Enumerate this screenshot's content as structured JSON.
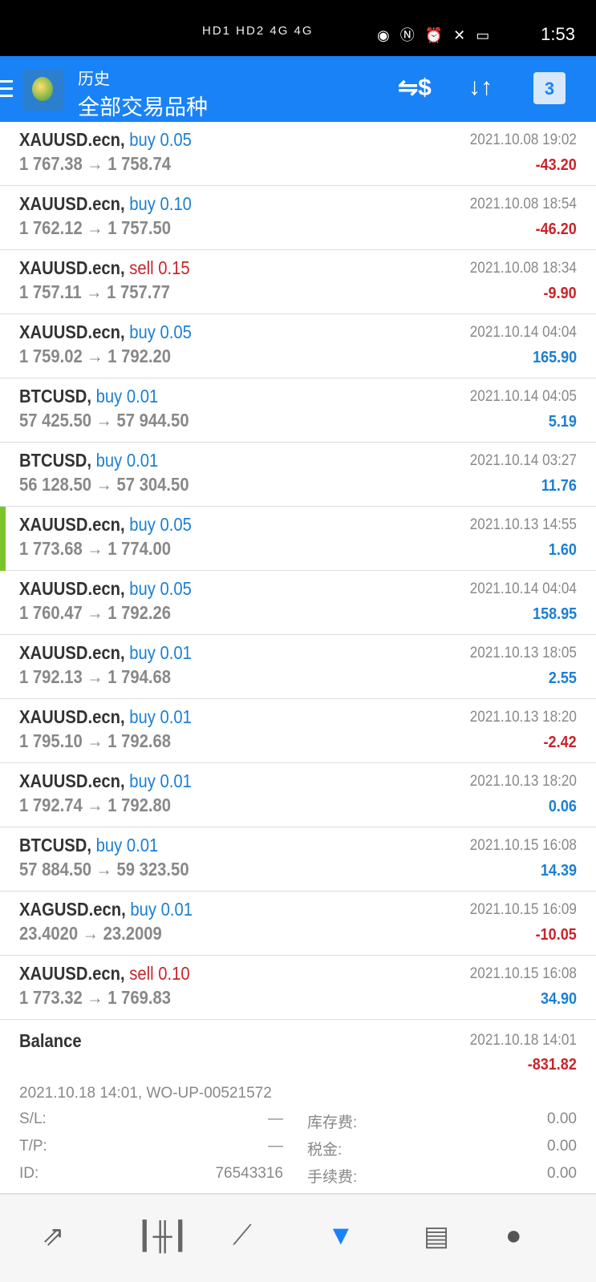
{
  "status_bar": {
    "left_icons": "HD1 HD2 4G 4G",
    "time": "1:53",
    "battery": "46"
  },
  "header": {
    "subtitle": "历史",
    "title": "全部交易品种",
    "calendar_day": "3"
  },
  "trades": [
    {
      "symbol": "XAUUSD.ecn,",
      "side": "buy",
      "volume": "0.05",
      "prices": "1 767.38 → 1 758.74",
      "date": "2021.10.08 19:02",
      "profit": "-43.20"
    },
    {
      "symbol": "XAUUSD.ecn,",
      "side": "buy",
      "volume": "0.10",
      "prices": "1 762.12 → 1 757.50",
      "date": "2021.10.08 18:54",
      "profit": "-46.20"
    },
    {
      "symbol": "XAUUSD.ecn,",
      "side": "sell",
      "volume": "0.15",
      "prices": "1 757.11 → 1 757.77",
      "date": "2021.10.08 18:34",
      "profit": "-9.90"
    },
    {
      "symbol": "XAUUSD.ecn,",
      "side": "buy",
      "volume": "0.05",
      "prices": "1 759.02 → 1 792.20",
      "date": "2021.10.14 04:04",
      "profit": "165.90"
    },
    {
      "symbol": "BTCUSD,",
      "side": "buy",
      "volume": "0.01",
      "prices": "57 425.50 → 57 944.50",
      "date": "2021.10.14 04:05",
      "profit": "5.19"
    },
    {
      "symbol": "BTCUSD,",
      "side": "buy",
      "volume": "0.01",
      "prices": "56 128.50 → 57 304.50",
      "date": "2021.10.14 03:27",
      "profit": "11.76"
    },
    {
      "symbol": "XAUUSD.ecn,",
      "side": "buy",
      "volume": "0.05",
      "prices": "1 773.68 → 1 774.00",
      "date": "2021.10.13 14:55",
      "profit": "1.60",
      "selected": true
    },
    {
      "symbol": "XAUUSD.ecn,",
      "side": "buy",
      "volume": "0.05",
      "prices": "1 760.47 → 1 792.26",
      "date": "2021.10.14 04:04",
      "profit": "158.95"
    },
    {
      "symbol": "XAUUSD.ecn,",
      "side": "buy",
      "volume": "0.01",
      "prices": "1 792.13 → 1 794.68",
      "date": "2021.10.13 18:05",
      "profit": "2.55"
    },
    {
      "symbol": "XAUUSD.ecn,",
      "side": "buy",
      "volume": "0.01",
      "prices": "1 795.10 → 1 792.68",
      "date": "2021.10.13 18:20",
      "profit": "-2.42"
    },
    {
      "symbol": "XAUUSD.ecn,",
      "side": "buy",
      "volume": "0.01",
      "prices": "1 792.74 → 1 792.80",
      "date": "2021.10.13 18:20",
      "profit": "0.06"
    },
    {
      "symbol": "BTCUSD,",
      "side": "buy",
      "volume": "0.01",
      "prices": "57 884.50 → 59 323.50",
      "date": "2021.10.15 16:08",
      "profit": "14.39"
    },
    {
      "symbol": "XAGUSD.ecn,",
      "side": "buy",
      "volume": "0.01",
      "prices": "23.4020 → 23.2009",
      "date": "2021.10.15 16:09",
      "profit": "-10.05"
    },
    {
      "symbol": "XAUUSD.ecn,",
      "side": "sell",
      "volume": "0.10",
      "prices": "1 773.32 → 1 769.83",
      "date": "2021.10.15 16:08",
      "profit": "34.90"
    }
  ],
  "balance": {
    "label": "Balance",
    "date": "2021.10.18 14:01",
    "amount": "-831.82",
    "comment": "2021.10.18 14:01, WO-UP-00521572",
    "sl_label": "S/L:",
    "sl": "—",
    "tp_label": "T/P:",
    "tp": "—",
    "id_label": "ID:",
    "id": "76543316",
    "swap_label": "库存费:",
    "swap": "0.00",
    "tax_label": "税金:",
    "tax": "0.00",
    "fee_label": "手续费:",
    "fee": "0.00"
  },
  "nav": [
    "quotes-icon",
    "chart-icon",
    "trade-icon",
    "history-icon",
    "news-icon",
    "chat-icon"
  ],
  "colors": {
    "accent": "#1a82f7",
    "loss": "#c8242a",
    "profit": "#1a7fd4",
    "selected": "#7bc42a"
  }
}
